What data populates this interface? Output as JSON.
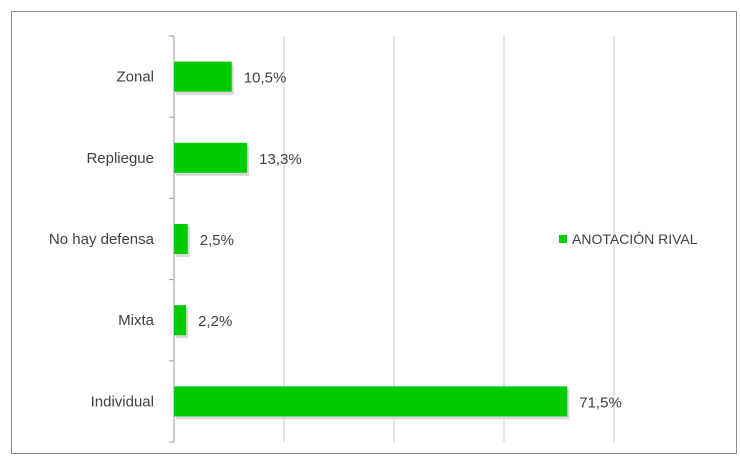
{
  "chart_data": {
    "type": "bar",
    "orientation": "horizontal",
    "categories": [
      "Zonal",
      "Repliegue",
      "No hay defensa",
      "Mixta",
      "Individual"
    ],
    "series": [
      {
        "name": "ANOTACIÓN RIVAL",
        "values": [
          10.5,
          13.3,
          2.5,
          2.2,
          71.5
        ],
        "value_labels": [
          "10,5%",
          "13,3%",
          "2,5%",
          "2,2%",
          "71,5%"
        ],
        "color": "#00cc00"
      }
    ],
    "title": "",
    "xlabel": "",
    "ylabel": "",
    "xlim": [
      0,
      80
    ],
    "grid": "vertical",
    "x_tick_labels_shown": false,
    "legend": "right"
  }
}
